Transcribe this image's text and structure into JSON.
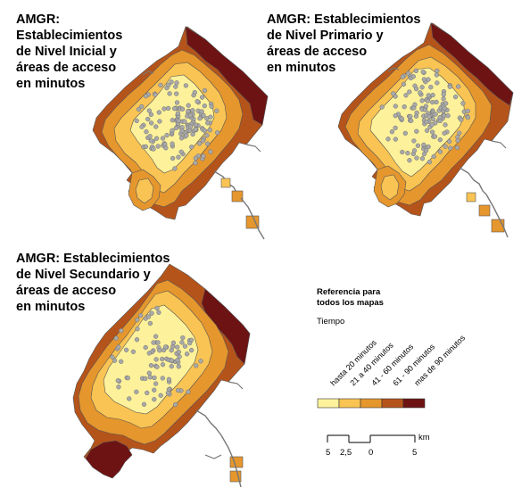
{
  "maps": [
    {
      "id": "inicial",
      "title": "AMGR: Establecimientos\nde Nivel Inicial y\náreas de acceso\nen minutos"
    },
    {
      "id": "primario",
      "title": "AMGR: Establecimientos\nde Nivel Primario y\náreas de acceso\nen minutos"
    },
    {
      "id": "secundario",
      "title": "AMGR: Establecimientos\nde Nivel Secundario y\náreas de acceso\nen minutos"
    }
  ],
  "legend": {
    "title": "Referencia para\ntodos los mapas",
    "subtitle": "Tiempo",
    "classes": [
      {
        "label": "hasta 20 minutos",
        "color": "#fdf29b"
      },
      {
        "label": "21 a 40 minutos",
        "color": "#f9c453"
      },
      {
        "label": "41 - 60 minutos",
        "color": "#e5962d"
      },
      {
        "label": "61 - 90 minutos",
        "color": "#b5541a"
      },
      {
        "label": "mas de 90 minutos",
        "color": "#6e1313"
      }
    ]
  },
  "scalebar": {
    "ticks": [
      "5",
      "2,5",
      "0",
      "5"
    ],
    "unit": "km"
  },
  "colors": {
    "establishment_marker": "#a9a9a9",
    "marker_stroke": "#6f6f6f",
    "boundary": "#555555"
  }
}
